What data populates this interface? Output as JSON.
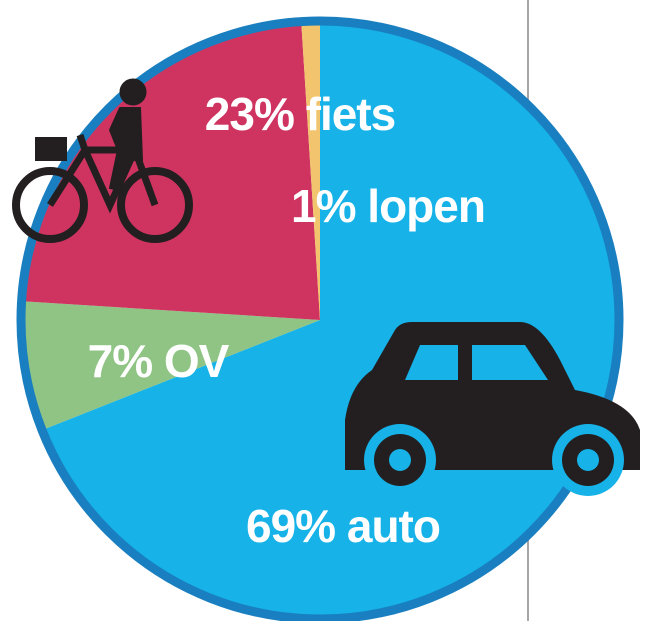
{
  "chart_data": {
    "type": "pie",
    "values": [
      69,
      7,
      23,
      1
    ],
    "value_labels": [
      "69% auto",
      "7% OV",
      "23% fiets",
      "1% lopen"
    ],
    "colors": [
      "#16b2e8",
      "#8fc485",
      "#cf3461",
      "#f2c46d"
    ]
  }
}
